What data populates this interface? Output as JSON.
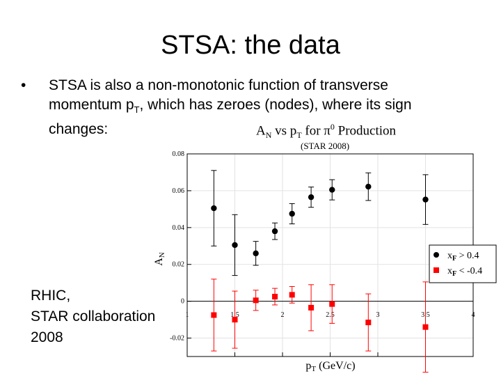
{
  "slide": {
    "title": "STSA: the data",
    "bullet_marker": "•",
    "bullet_text_1": "STSA is also a non-monotonic function of transverse momentum p",
    "bullet_sub": "T",
    "bullet_text_2": ", which has zeroes (nodes), where its sign changes:",
    "side_note": "RHIC,\nSTAR collaboration\n2008"
  },
  "chart_data": {
    "type": "scatter",
    "title": "A_N vs p_T for π⁰ Production",
    "subtitle": "(STAR 2008)",
    "xlabel": "p_T (GeV/c)",
    "ylabel": "A_N",
    "xlim": [
      1,
      4
    ],
    "ylim": [
      -0.03,
      0.08
    ],
    "xticks": [
      "1",
      "1.5",
      "2",
      "2.5",
      "3",
      "3.5",
      "4"
    ],
    "yticks": [
      "-0.02",
      "0",
      "0.02",
      "0.04",
      "0.06",
      "0.08"
    ],
    "grid": true,
    "legend_position": "right",
    "series": [
      {
        "name": "x_F > 0.4",
        "color": "#000000",
        "marker": "circle",
        "points": [
          {
            "x": 1.28,
            "y": 0.0505,
            "err": 0.0205
          },
          {
            "x": 1.5,
            "y": 0.0305,
            "err": 0.0165
          },
          {
            "x": 1.72,
            "y": 0.026,
            "err": 0.0065
          },
          {
            "x": 1.92,
            "y": 0.038,
            "err": 0.0045
          },
          {
            "x": 2.1,
            "y": 0.0475,
            "err": 0.0055
          },
          {
            "x": 2.3,
            "y": 0.0565,
            "err": 0.0055
          },
          {
            "x": 2.52,
            "y": 0.0605,
            "err": 0.0055
          },
          {
            "x": 2.9,
            "y": 0.0622,
            "err": 0.0075
          },
          {
            "x": 3.5,
            "y": 0.0552,
            "err": 0.0135
          }
        ]
      },
      {
        "name": "x_F < -0.4",
        "color": "#ff0000",
        "marker": "square",
        "points": [
          {
            "x": 1.28,
            "y": -0.0075,
            "err": 0.0195
          },
          {
            "x": 1.5,
            "y": -0.01,
            "err": 0.0155
          },
          {
            "x": 1.72,
            "y": 0.0005,
            "err": 0.0055
          },
          {
            "x": 1.92,
            "y": 0.0025,
            "err": 0.0045
          },
          {
            "x": 2.1,
            "y": 0.0035,
            "err": 0.0045
          },
          {
            "x": 2.3,
            "y": -0.0035,
            "err": 0.0125
          },
          {
            "x": 2.52,
            "y": -0.0015,
            "err": 0.0105
          },
          {
            "x": 2.9,
            "y": -0.0115,
            "err": 0.0155
          },
          {
            "x": 3.5,
            "y": -0.014,
            "err": 0.0245
          }
        ]
      }
    ]
  }
}
